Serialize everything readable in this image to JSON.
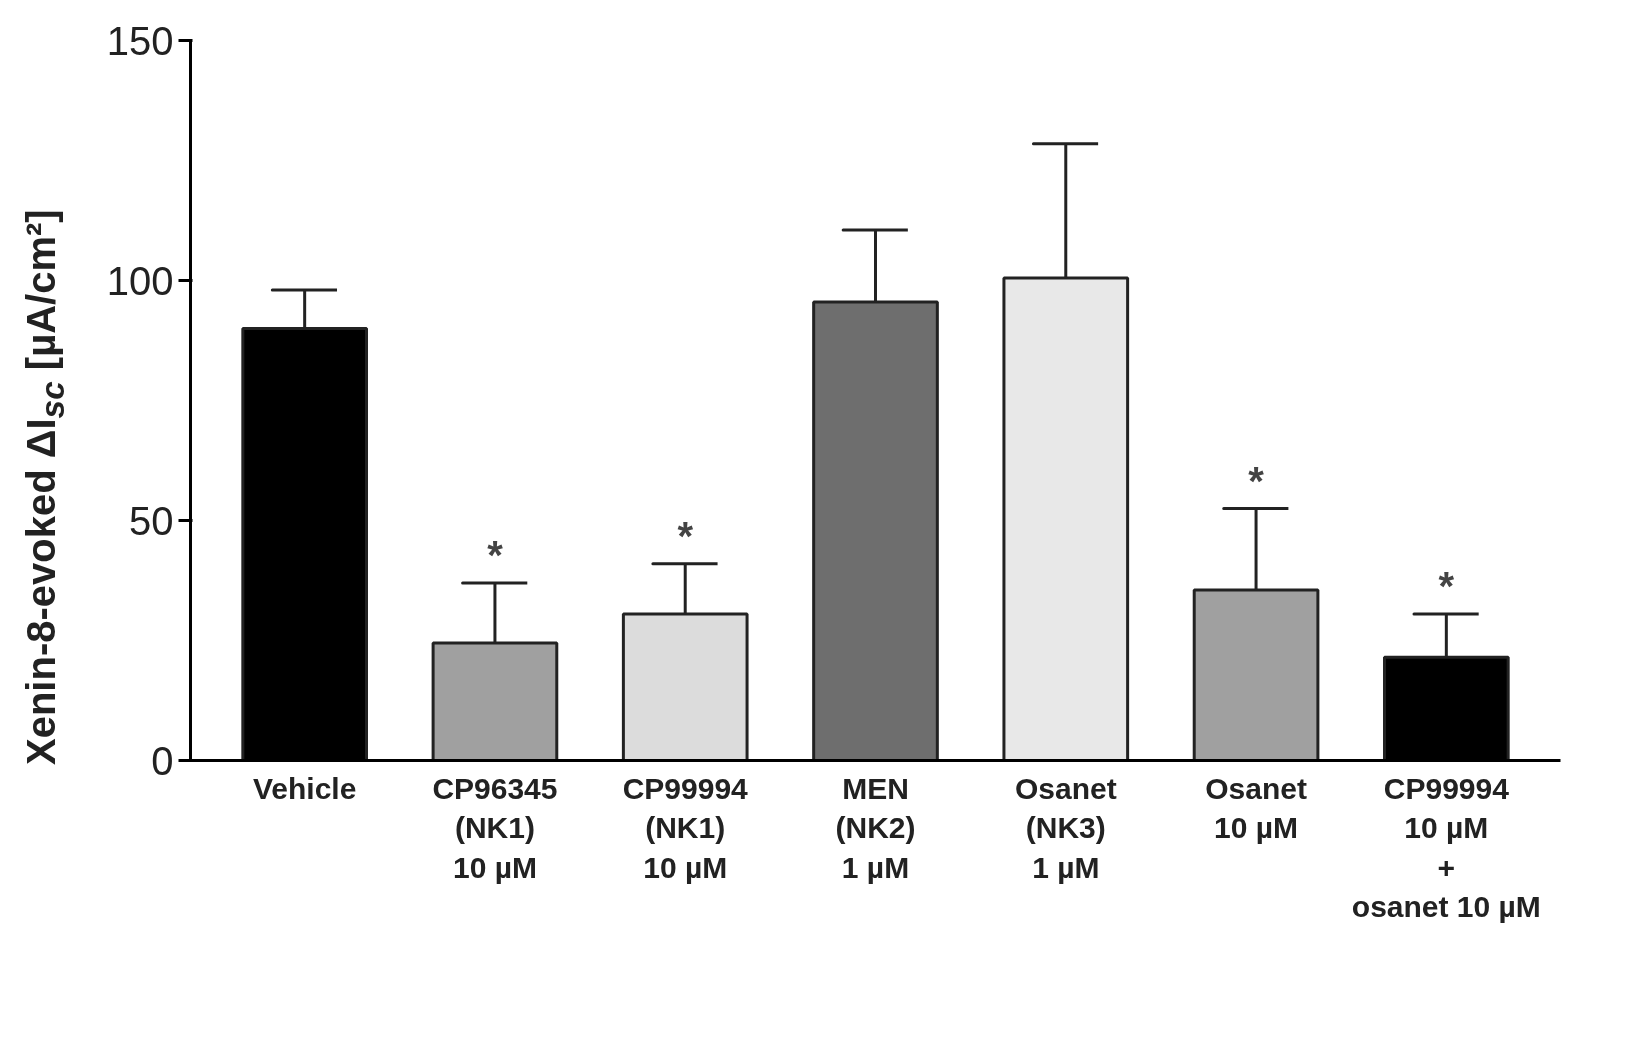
{
  "chart_data": {
    "type": "bar",
    "ylabel": "Xenin-8-evoked ΔI$_{sc}$ [µA/cm²]",
    "categories": [
      "Vehicle",
      "CP96345\n(NK1)\n10 µM",
      "CP99994\n(NK1)\n10 µM",
      "MEN\n(NK2)\n1 µM",
      "Osanet\n(NK3)\n1 µM",
      "Osanet\n10 µM",
      "CP99994\n10 µM\n+\nosanet 10 µM"
    ],
    "values": [
      90,
      24.5,
      30.5,
      95.5,
      100.5,
      35.5,
      21.5
    ],
    "colors": [
      "#000000",
      "#a0a0a0",
      "#dcdcdc",
      "#6e6e6e",
      "#e8e8e8",
      "#a0a0a0",
      "#000000"
    ],
    "errors": [
      [
        90,
        98
      ],
      [
        24.5,
        37
      ],
      [
        30.5,
        41
      ],
      [
        95.5,
        110.5
      ],
      [
        100.5,
        128.5
      ],
      [
        35.5,
        52.5
      ],
      [
        21.5,
        30.5
      ]
    ],
    "ylim": [
      0,
      150
    ],
    "yticks": [
      0,
      50,
      100,
      150
    ],
    "grid": false,
    "annotations": [
      {
        "text": "*",
        "x": "CP96345\n(NK1)\n10 µM",
        "y": 37
      },
      {
        "text": "*",
        "x": "CP99994\n(NK1)\n10 µM",
        "y": 41
      },
      {
        "text": "*",
        "x": "Osanet\n10 µM",
        "y": 52.5
      },
      {
        "text": "*",
        "x": "CP99994\n10 µM\n+\nosanet 10 µM",
        "y": 30.5
      }
    ]
  }
}
